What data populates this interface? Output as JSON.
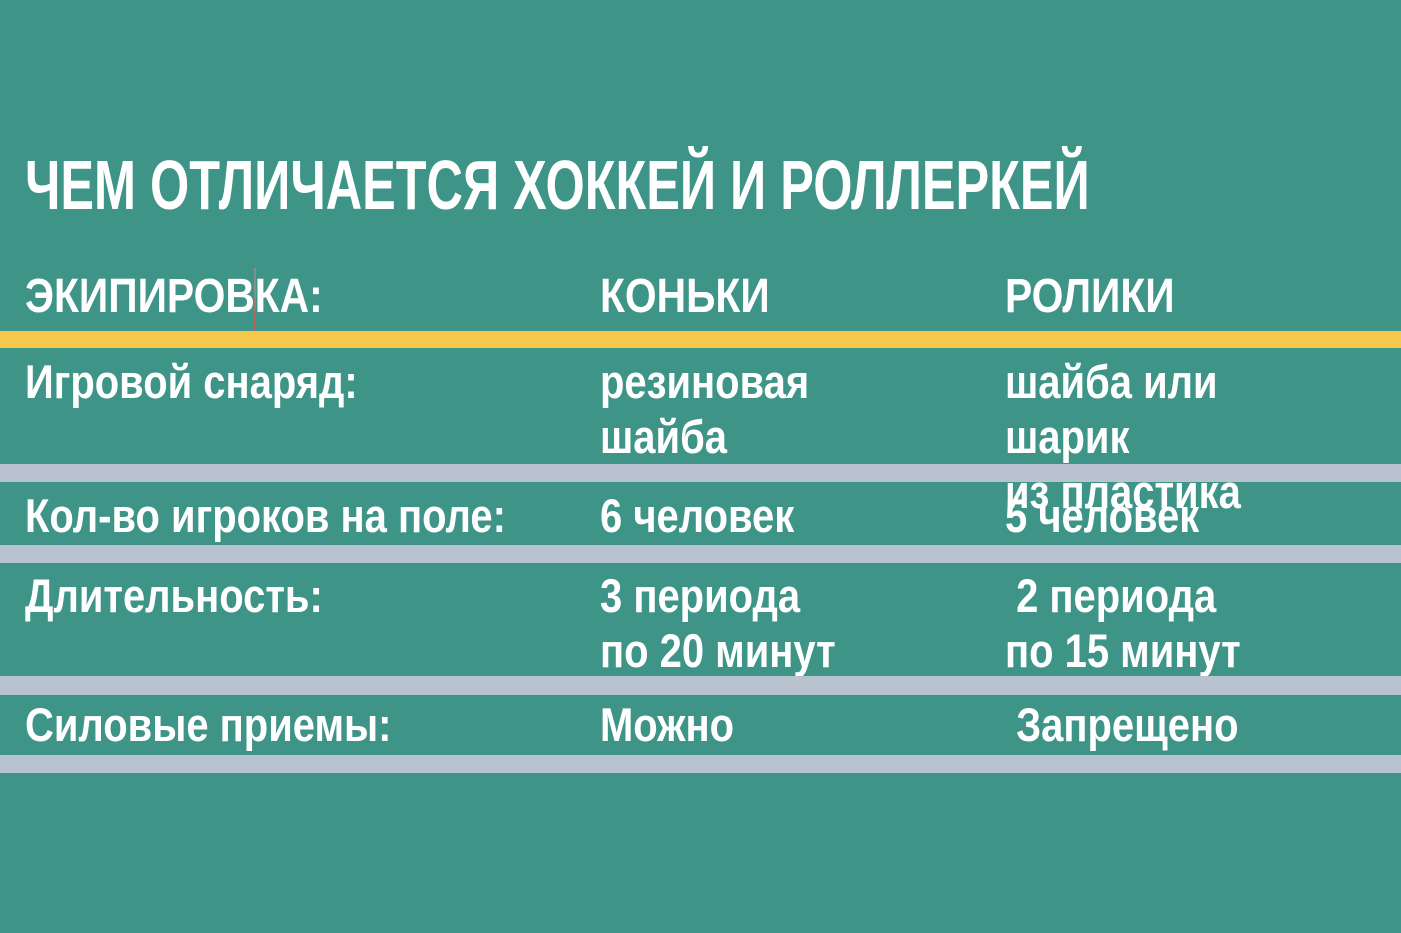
{
  "colors": {
    "background": "#3F9488",
    "accent_bar": "#F3C84B",
    "row_divider": "#B8C3CF",
    "text": "#FFFFFF"
  },
  "title": "ЧЕМ ОТЛИЧАЕТСЯ ХОККЕЙ И РОЛЛЕРКЕЙ",
  "table": {
    "header": {
      "label_col": "ЭКИПИРОВКА:",
      "skates_col": "КОНЬКИ",
      "rollers_col": "РОЛИКИ"
    },
    "rows": [
      {
        "label": "Игровой снаряд:",
        "skates": "резиновая\nшайба",
        "rollers": "шайба или шарик\nиз пластика"
      },
      {
        "label": "Кол-во игроков на поле:",
        "skates": "6 человек",
        "rollers": "5 человек"
      },
      {
        "label": "Длительность:",
        "skates": "3 периода\nпо 20 минут",
        "rollers": " 2 периода\nпо 15 минут"
      },
      {
        "label": "Силовые приемы:",
        "skates": "Можно",
        "rollers": " Запрещено"
      }
    ]
  },
  "chart_data": {
    "type": "table",
    "title": "ЧЕМ ОТЛИЧАЕТСЯ ХОККЕЙ И РОЛЛЕРКЕЙ",
    "columns": [
      "ЭКИПИРОВКА:",
      "КОНЬКИ",
      "РОЛИКИ"
    ],
    "rows": [
      [
        "Игровой снаряд:",
        "резиновая шайба",
        "шайба или шарик из пластика"
      ],
      [
        "Кол-во игроков на поле:",
        "6 человек",
        "5 человек"
      ],
      [
        "Длительность:",
        "3 периода по 20 минут",
        "2 периода по 15 минут"
      ],
      [
        "Силовые приемы:",
        "Можно",
        "Запрещено"
      ]
    ],
    "layout": {
      "header_underline_color": "#F3C84B",
      "row_divider_color": "#B8C3CF",
      "background": "#3F9488",
      "text_color": "#FFFFFF"
    }
  }
}
